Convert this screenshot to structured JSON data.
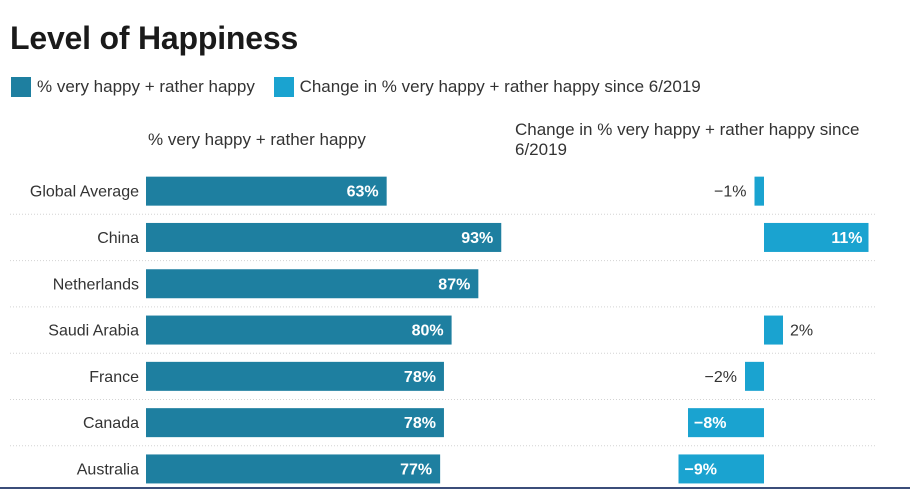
{
  "title": "Level of Happiness",
  "legend": [
    {
      "label": "% very happy + rather happy",
      "color": "#1e7fa0"
    },
    {
      "label": "Change in % very happy + rather happy since 6/2019",
      "color": "#1aa3d0"
    }
  ],
  "column_headers": {
    "left": "% very happy + rather happy",
    "right": "Change in % very happy + rather happy since 6/2019"
  },
  "chart_data": {
    "type": "bar",
    "categories": [
      "Global Average",
      "China",
      "Netherlands",
      "Saudi Arabia",
      "France",
      "Canada",
      "Australia"
    ],
    "series": [
      {
        "name": "% very happy + rather happy",
        "values": [
          63,
          93,
          87,
          80,
          78,
          78,
          77
        ],
        "labels": [
          "63%",
          "93%",
          "87%",
          "80%",
          "78%",
          "78%",
          "77%"
        ],
        "color": "#1e7fa0"
      },
      {
        "name": "Change in % very happy + rather happy since 6/2019",
        "values": [
          -1,
          11,
          null,
          2,
          -2,
          -8,
          -9
        ],
        "labels": [
          "−1%",
          "11%",
          "",
          "2%",
          "−2%",
          "−8%",
          "−9%"
        ],
        "color": "#1aa3d0"
      }
    ],
    "grid": false
  }
}
